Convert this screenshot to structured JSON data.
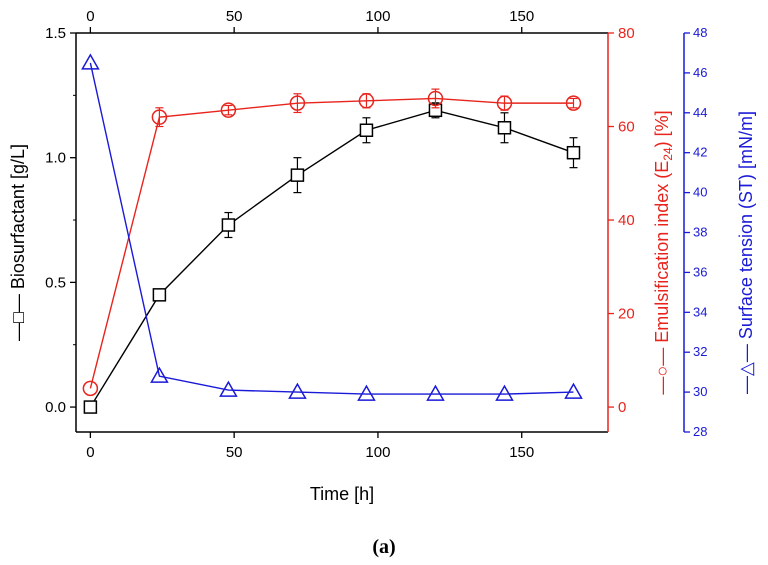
{
  "chart_data": {
    "type": "line",
    "title": "",
    "caption": "(a)",
    "x": [
      0,
      24,
      48,
      72,
      96,
      120,
      144,
      168
    ],
    "xlabel": "Time [h]",
    "xlim": [
      -5,
      180
    ],
    "xticks": [
      0,
      50,
      100,
      150
    ],
    "xticks_top": [
      0,
      50,
      100,
      150
    ],
    "axes": {
      "left": {
        "label": "Biosurfactant [g/L]",
        "legend_glyph": "—□— ",
        "color": "#000000",
        "lim": [
          -0.1,
          1.5
        ],
        "ticks": [
          "0.0",
          "0.5",
          "1.0",
          "1.5"
        ]
      },
      "right1": {
        "label_pre": "Emulsification index (E",
        "label_sub": "24",
        "label_post": ") [%]",
        "legend_glyph": "—○— ",
        "color": "#e8241c",
        "lim": [
          -5.333,
          80
        ],
        "ticks": [
          "0",
          "20",
          "40",
          "60",
          "80"
        ]
      },
      "right2": {
        "label": "Surface tension (ST) [mN/m]",
        "legend_glyph": "—△— ",
        "color": "#1a1ad8",
        "lim": [
          28,
          48
        ],
        "ticks": [
          "28",
          "30",
          "32",
          "34",
          "36",
          "38",
          "40",
          "42",
          "44",
          "46",
          "48"
        ]
      }
    },
    "series": [
      {
        "name": "Biosurfactant",
        "axis": "left",
        "marker": "square",
        "color": "#000000",
        "values": [
          0.0,
          0.45,
          0.73,
          0.93,
          1.11,
          1.19,
          1.12,
          1.02
        ],
        "errors": [
          0.0,
          0.02,
          0.05,
          0.07,
          0.05,
          0.03,
          0.06,
          0.06
        ]
      },
      {
        "name": "Emulsification index (E24)",
        "axis": "right1",
        "marker": "circle",
        "color": "#e8241c",
        "values": [
          4,
          62,
          63.5,
          65,
          65.5,
          66,
          65,
          65
        ],
        "errors": [
          0,
          2,
          1,
          2,
          1.5,
          2,
          1.5,
          1
        ]
      },
      {
        "name": "Surface tension (ST)",
        "axis": "right2",
        "marker": "triangle",
        "color": "#1a1ad8",
        "values": [
          46.5,
          30.8,
          30.1,
          30.0,
          29.9,
          29.9,
          29.9,
          30.0
        ],
        "errors": [
          0,
          0,
          0,
          0,
          0,
          0,
          0,
          0
        ]
      }
    ]
  }
}
